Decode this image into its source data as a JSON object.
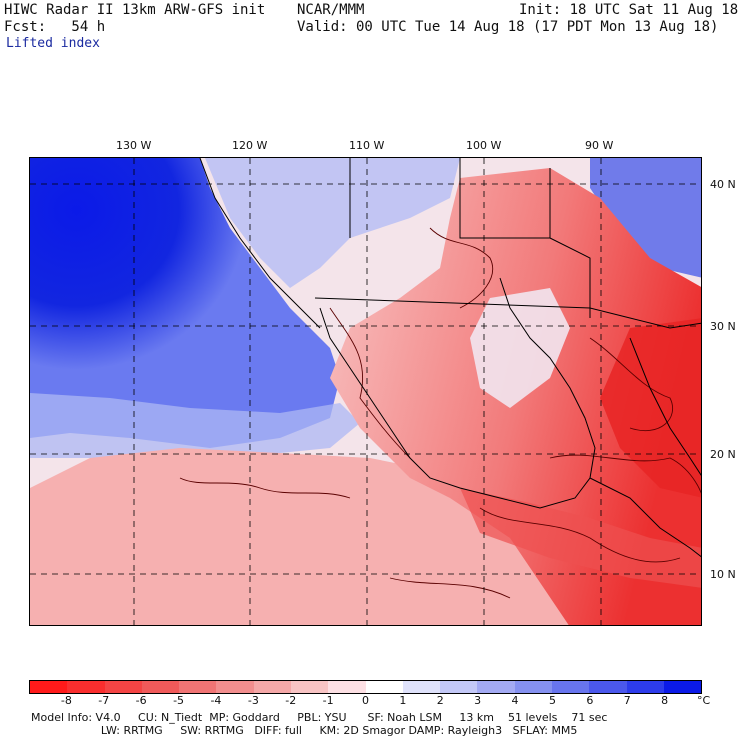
{
  "header": {
    "title_left": "HIWC Radar II 13km ARW-GFS init",
    "center": "NCAR/MMM",
    "init": "Init: 18 UTC Sat 11 Aug 18",
    "fcst": "Fcst:   54 h",
    "valid": "Valid: 00 UTC Tue 14 Aug 18 (17 PDT Mon 13 Aug 18)",
    "field": "Lifted index"
  },
  "map": {
    "lon_labels": [
      "130 W",
      "120 W",
      "110 W",
      "100 W",
      "90 W"
    ],
    "lat_labels": [
      "40 N",
      "30 N",
      "20 N",
      "10 N"
    ],
    "colors": {
      "ocean_stable": "#1226e0",
      "ocean_mid": "#8a9af2",
      "neutral": "#f4e8ee",
      "unstable_light": "#f8b8b8",
      "unstable_mid": "#f27070",
      "unstable_strong": "#ec3030",
      "contour": "#5a0000",
      "border": "#000000"
    }
  },
  "colorbar": {
    "ticks": [
      "-8",
      "-7",
      "-6",
      "-5",
      "-4",
      "-3",
      "-2",
      "-1",
      "0",
      "1",
      "2",
      "3",
      "4",
      "5",
      "6",
      "7",
      "8"
    ],
    "unit": "°C",
    "swatches": [
      "#ff1a1a",
      "#fa2e2e",
      "#f44444",
      "#f05a5a",
      "#f07474",
      "#f28e8e",
      "#f5a8a8",
      "#f8c4c4",
      "#fde0e4",
      "#ffffff",
      "#dfe2fb",
      "#c3c8f7",
      "#a3aaf3",
      "#8591f0",
      "#6875ee",
      "#4b58ec",
      "#2d3ceb",
      "#0b1ae8"
    ]
  },
  "footer": {
    "line1": "Model Info: V4.0     CU: N_Tiedt  MP: Goddard     PBL: YSU      SF: Noah LSM     13 km    51 levels    71 sec",
    "line2": "                    LW: RRTMG     SW: RRTMG   DIFF: full     KM: 2D Smagor DAMP: Rayleigh3   SFLAY: MM5"
  }
}
